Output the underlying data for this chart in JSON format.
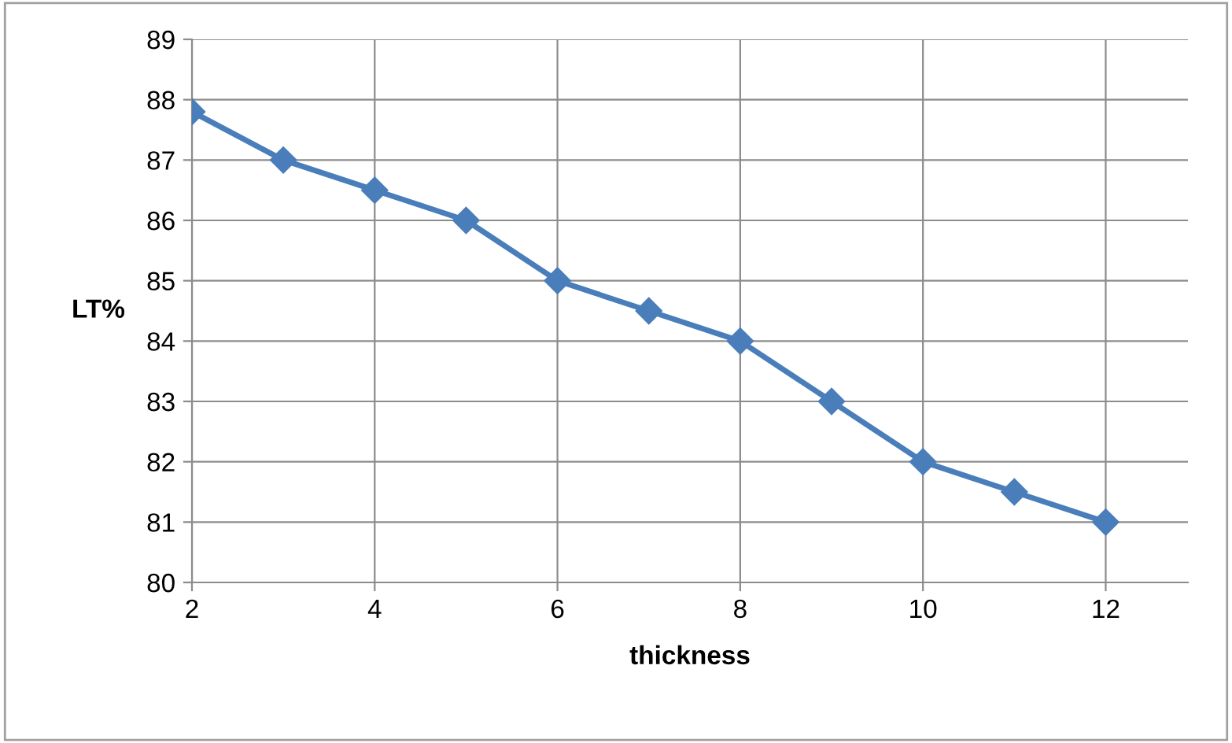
{
  "chart_data": {
    "type": "line",
    "xlabel": "thickness",
    "ylabel": "LT%",
    "x": [
      2,
      3,
      4,
      5,
      6,
      7,
      8,
      9,
      10,
      11,
      12
    ],
    "series": [
      {
        "color": "#4a7ebb",
        "values": [
          87.8,
          87,
          86.5,
          86,
          85,
          84.5,
          84,
          83,
          82,
          81.5,
          81
        ]
      }
    ],
    "xlim": [
      2,
      12.9
    ],
    "xticks": [
      2,
      4,
      6,
      8,
      10,
      12
    ],
    "ylim": [
      80,
      89
    ],
    "yticks": [
      80,
      81,
      82,
      83,
      84,
      85,
      86,
      87,
      88,
      89
    ],
    "grid": true,
    "marker": "diamond",
    "line_style": "solid",
    "legend": false
  }
}
